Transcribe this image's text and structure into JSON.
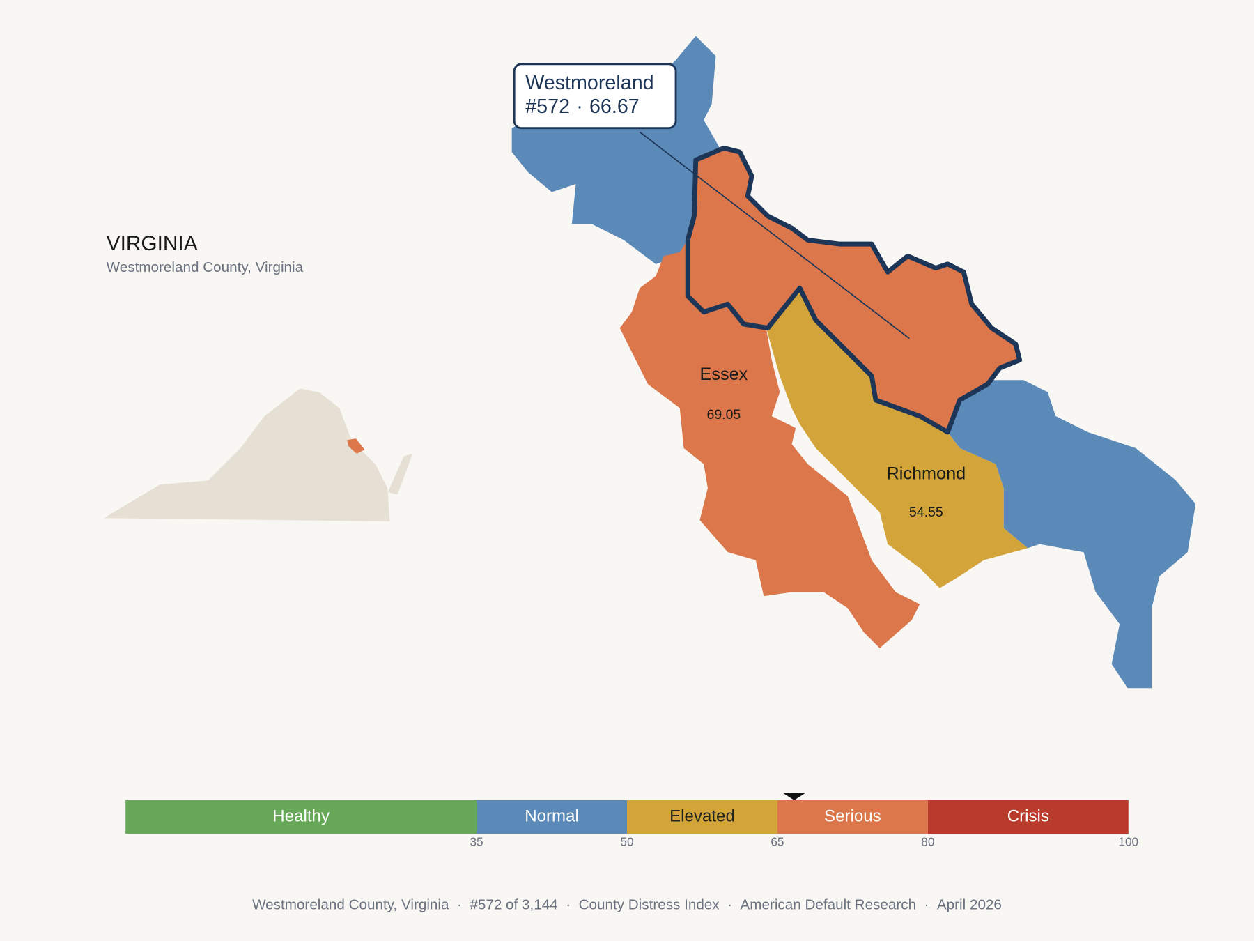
{
  "header": {
    "title": "VIRGINIA",
    "subtitle": "Westmoreland County, Virginia"
  },
  "map": {
    "callout": {
      "name": "Westmoreland",
      "rank": "#572",
      "separator": "·",
      "value": 66.67
    },
    "counties": [
      {
        "name": "Essex",
        "value": 69.05
      },
      {
        "name": "Richmond",
        "value": 54.55
      }
    ]
  },
  "scale": {
    "xlim": [
      0,
      100
    ],
    "bands": [
      {
        "label": "Healthy",
        "from": 0,
        "to": 35,
        "color": "#66a758",
        "text_color": "#ffffff"
      },
      {
        "label": "Normal",
        "from": 35,
        "to": 50,
        "color": "#5b8ab9",
        "text_color": "#ffffff"
      },
      {
        "label": "Elevated",
        "from": 50,
        "to": 65,
        "color": "#d3a43a",
        "text_color": "#222222"
      },
      {
        "label": "Serious",
        "from": 65,
        "to": 80,
        "color": "#db774a",
        "text_color": "#ffffff"
      },
      {
        "label": "Crisis",
        "from": 80,
        "to": 100,
        "color": "#b93b2b",
        "text_color": "#ffffff"
      }
    ],
    "ticks": [
      35,
      50,
      65,
      80,
      100
    ]
  },
  "footer": {
    "separator": "·",
    "items": [
      "Westmoreland County, Virginia",
      "#572 of 3,144",
      "County Distress Index",
      "American Default Research",
      "April 2026"
    ]
  }
}
